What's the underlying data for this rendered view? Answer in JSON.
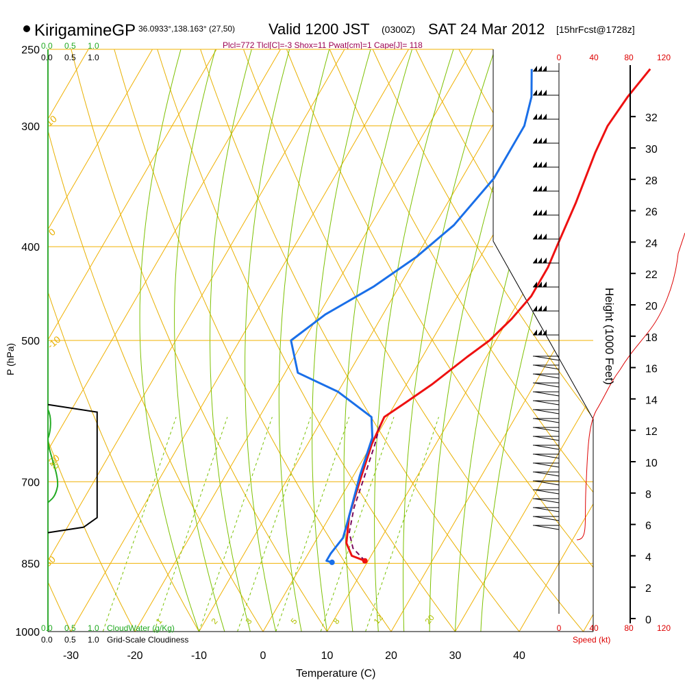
{
  "header": {
    "station": "KirigamineGP",
    "location": "36.0933°,138.163° (27,50)",
    "valid": "Valid 1200 JST",
    "zulu": "(0300Z)",
    "date": "SAT 24 Mar 2012",
    "forecast": "[15hrFcst@1728z]",
    "params": "Plcl=772 Tlcl[C]=-3 Shox=11 Pwat[cm]=1 Cape[J]= 118"
  },
  "axes": {
    "xlabel": "Temperature (C)",
    "ylabel": "P (hPa)",
    "height_label": "Height (1000 Feet)",
    "cloudwater_label": "CloudWater (g/Kg)",
    "cloudiness_label": "Grid-Scale Cloudiness",
    "speed_label": "Speed (kt)",
    "scale_top_green": [
      "0.0",
      "0.5",
      "1.0"
    ],
    "scale_top_black": [
      "0.0",
      "0.5",
      "1.0"
    ],
    "scale_bottom_green": [
      "0.0",
      "0.5",
      "1.0"
    ],
    "scale_bottom_black": [
      "0.0",
      "0.5",
      "1.0"
    ],
    "speed_ticks": [
      "0",
      "40",
      "80",
      "120"
    ]
  },
  "colors": {
    "temperature": "#ee1111",
    "dewpoint": "#1a6fe8",
    "parcel": "#7a0a5a",
    "isotherm": "#f0b000",
    "dry_adiabat": "#e8b000",
    "moist_adiabat": "#7cc000",
    "mixing_ratio": "#78c000",
    "cloudwater": "#22aa22",
    "speed": "#dd0000",
    "params": "#9b0050"
  },
  "chart_data": {
    "type": "line",
    "x_ticks": [
      -30,
      -20,
      -10,
      0,
      10,
      20,
      30,
      40
    ],
    "pressure_levels": [
      250,
      300,
      400,
      500,
      700,
      850,
      1000
    ],
    "height_ticks_kft": [
      0,
      2,
      4,
      6,
      8,
      10,
      12,
      14,
      16,
      18,
      20,
      22,
      24,
      26,
      28,
      30,
      32
    ],
    "dry_adiabat_labels": [
      "10",
      "0",
      "-10",
      "20",
      "30",
      "0",
      "10",
      "20",
      "30"
    ],
    "mixing_ratio_labels": [
      "1",
      "2",
      "3",
      "5",
      "8",
      "12",
      "20"
    ],
    "series": [
      {
        "name": "temperature",
        "points": [
          [
            9.5,
            845
          ],
          [
            7,
            835
          ],
          [
            5,
            810
          ],
          [
            3,
            760
          ],
          [
            1.5,
            700
          ],
          [
            0,
            640
          ],
          [
            -0.5,
            600
          ],
          [
            1.5,
            580
          ],
          [
            4,
            555
          ],
          [
            7,
            520
          ],
          [
            9,
            500
          ],
          [
            10.5,
            475
          ],
          [
            11.5,
            450
          ],
          [
            11.5,
            420
          ],
          [
            11,
            400
          ],
          [
            10,
            360
          ],
          [
            8.5,
            320
          ],
          [
            8,
            300
          ],
          [
            8.5,
            280
          ],
          [
            9.5,
            262
          ]
        ]
      },
      {
        "name": "dewpoint",
        "points": [
          [
            4.5,
            848
          ],
          [
            3.5,
            845
          ],
          [
            3.5,
            830
          ],
          [
            4,
            800
          ],
          [
            3,
            760
          ],
          [
            1,
            690
          ],
          [
            -0.5,
            630
          ],
          [
            -2.5,
            600
          ],
          [
            -10,
            565
          ],
          [
            -18,
            540
          ],
          [
            -22,
            500
          ],
          [
            -19,
            470
          ],
          [
            -14,
            440
          ],
          [
            -10,
            410
          ],
          [
            -7,
            380
          ],
          [
            -5,
            340
          ],
          [
            -5,
            300
          ],
          [
            -6.5,
            280
          ],
          [
            -9,
            262
          ]
        ]
      },
      {
        "name": "parcel",
        "points": [
          [
            9.5,
            845
          ],
          [
            6.5,
            820
          ],
          [
            4.5,
            790
          ],
          [
            3,
            745
          ],
          [
            2,
            700
          ],
          [
            0.5,
            640
          ],
          [
            -0.5,
            610
          ]
        ]
      }
    ],
    "cloudiness_box": {
      "top_hpa": 595,
      "bottom_hpa": 780,
      "max_fraction": 0.52
    },
    "wind": {
      "speed_axis_kt": [
        0,
        40,
        80,
        120
      ]
    }
  }
}
